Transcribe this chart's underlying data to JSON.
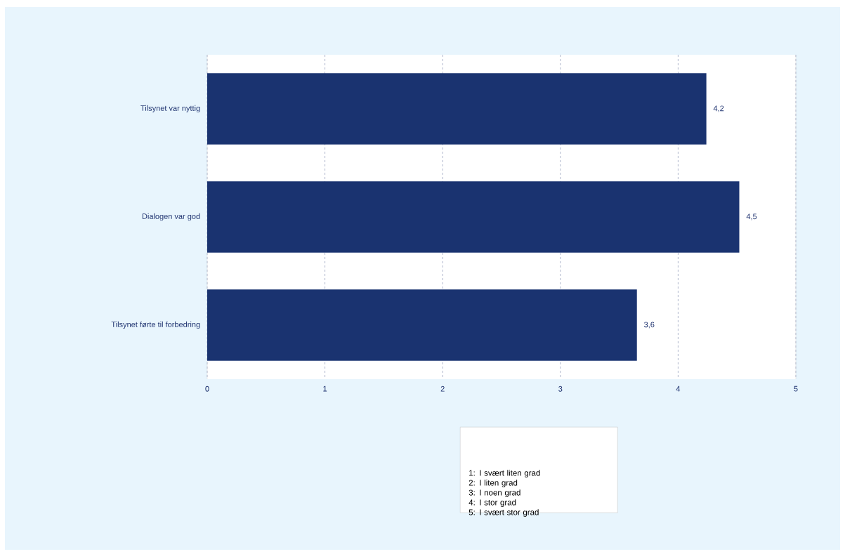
{
  "chart_data": {
    "type": "bar",
    "orientation": "horizontal",
    "categories": [
      "Tilsynet var nyttig",
      "Dialogen var god",
      "Tilsynet førte til forbedring"
    ],
    "values": [
      4.24,
      4.52,
      3.65
    ],
    "value_labels": [
      "4,2",
      "4,5",
      "3,6"
    ],
    "color": "#1a3370",
    "xlim": [
      0,
      5
    ],
    "xticks": [
      0,
      1,
      2,
      3,
      4,
      5
    ],
    "grid": "x",
    "annotations": [
      "1: I svært liten grad",
      "2: I liten grad",
      "3: I noen grad",
      "4: I stor grad",
      "5: I svært stor grad"
    ]
  }
}
